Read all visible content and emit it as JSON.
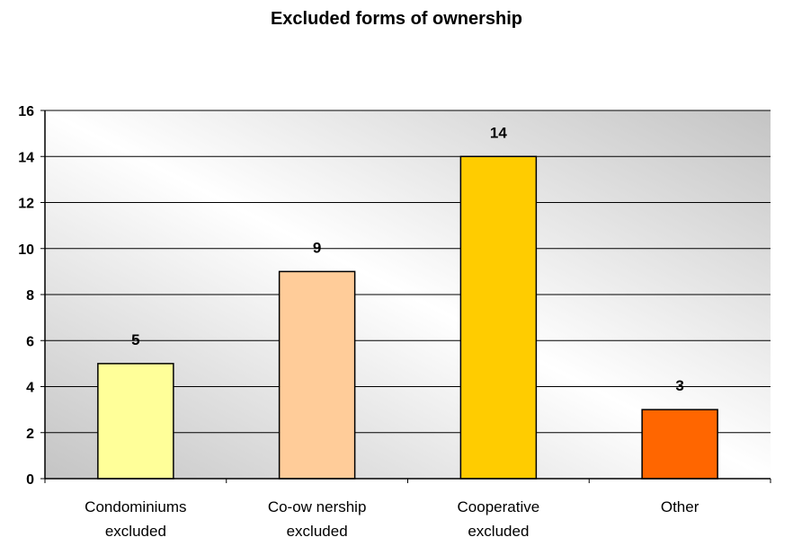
{
  "chart_data": {
    "type": "bar",
    "title": "Excluded forms of ownership",
    "categories": [
      [
        "Condominiums",
        "excluded"
      ],
      [
        "Co-ow nership",
        "excluded"
      ],
      [
        "Cooperative",
        "excluded"
      ],
      [
        "Other"
      ]
    ],
    "values": [
      5,
      9,
      14,
      3
    ],
    "bar_colors": [
      "#FFFF99",
      "#FFCC99",
      "#FFCC00",
      "#FF6600"
    ],
    "ylim": [
      0,
      16
    ],
    "yticks": [
      0,
      2,
      4,
      6,
      8,
      10,
      12,
      14,
      16
    ],
    "data_labels": true,
    "grid": true,
    "legend": "none"
  }
}
